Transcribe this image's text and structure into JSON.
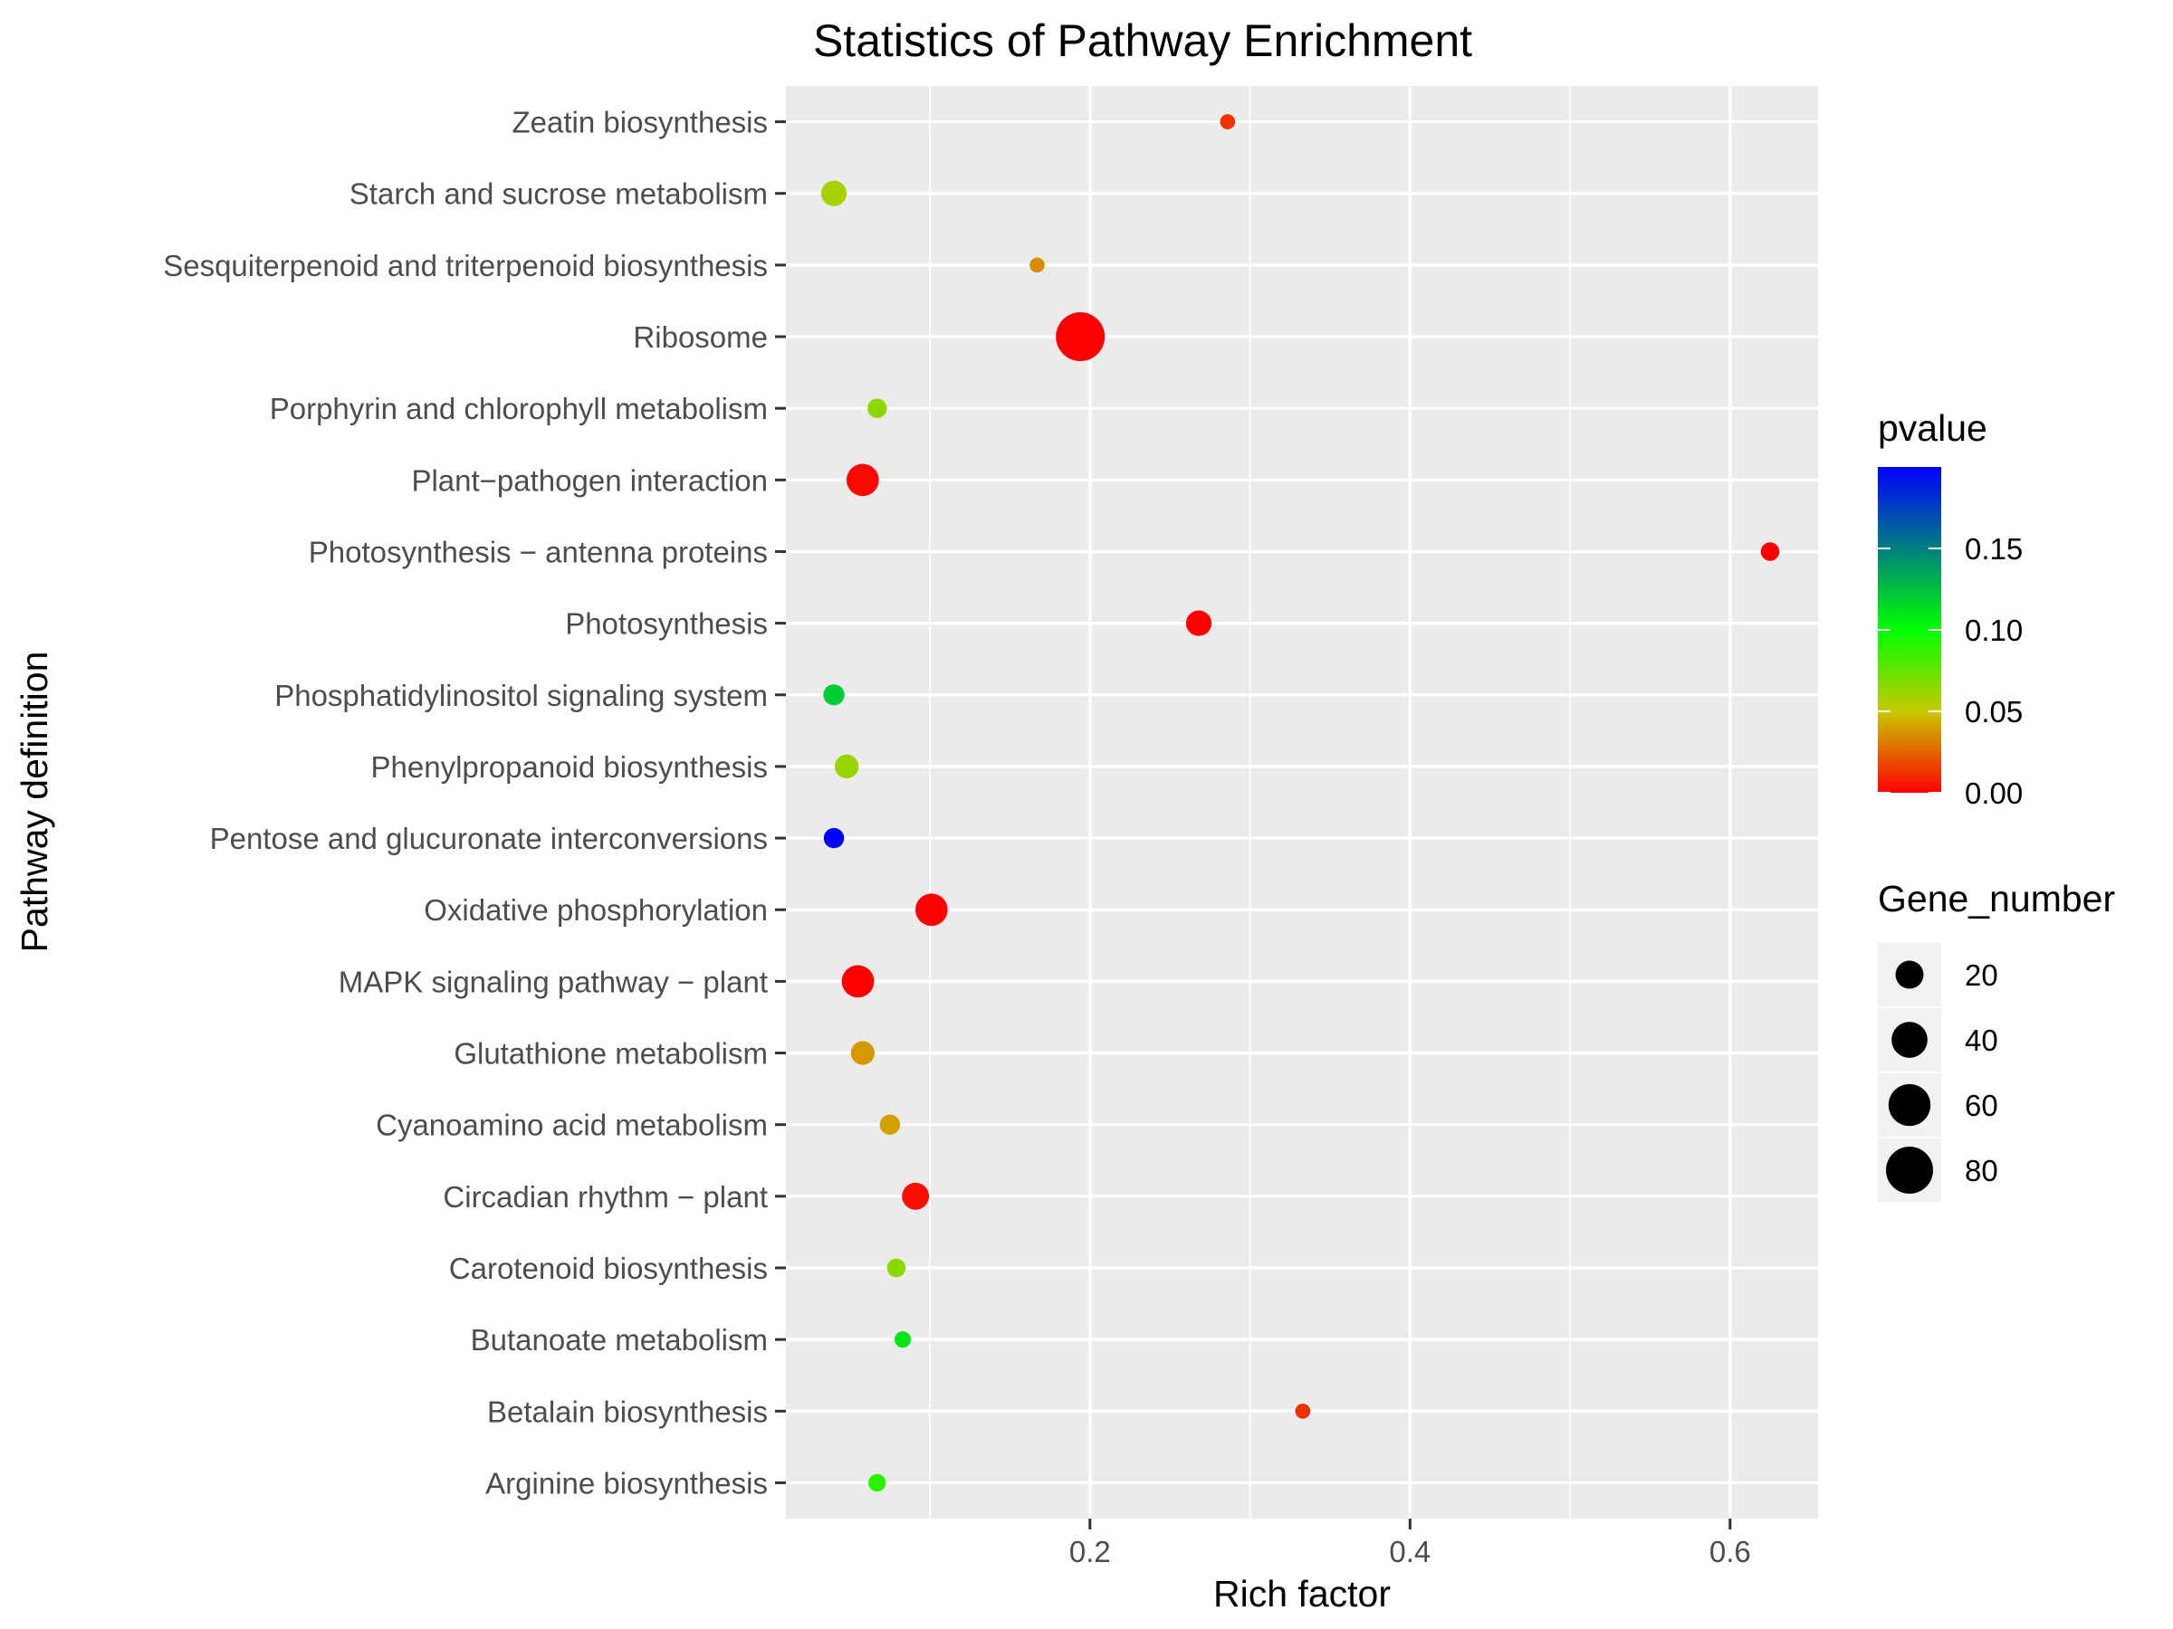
{
  "chart_data": {
    "type": "scatter",
    "title": "Statistics of Pathway Enrichment",
    "xlabel": "Rich factor",
    "ylabel": "Pathway definition",
    "xlim": [
      0.01,
      0.655
    ],
    "xticks": [
      0.2,
      0.4,
      0.6
    ],
    "xtick_labels": [
      "0.2",
      "0.4",
      "0.6"
    ],
    "grid": true,
    "categories": [
      "Zeatin biosynthesis",
      "Starch and sucrose metabolism",
      "Sesquiterpenoid and triterpenoid biosynthesis",
      "Ribosome",
      "Porphyrin and chlorophyll metabolism",
      "Plant−pathogen interaction",
      "Photosynthesis − antenna proteins",
      "Photosynthesis",
      "Phosphatidylinositol signaling system",
      "Phenylpropanoid biosynthesis",
      "Pentose and glucuronate interconversions",
      "Oxidative phosphorylation",
      "MAPK signaling pathway − plant",
      "Glutathione metabolism",
      "Cyanoamino acid metabolism",
      "Circadian rhythm − plant",
      "Carotenoid biosynthesis",
      "Butanoate metabolism",
      "Betalain biosynthesis",
      "Arginine biosynthesis"
    ],
    "points": [
      {
        "pathway": "Zeatin biosynthesis",
        "rich_factor": 0.286,
        "gene_number": 2,
        "pvalue": 0.012
      },
      {
        "pathway": "Starch and sucrose metabolism",
        "rich_factor": 0.04,
        "gene_number": 15,
        "pvalue": 0.058
      },
      {
        "pathway": "Sesquiterpenoid and triterpenoid biosynthesis",
        "rich_factor": 0.167,
        "gene_number": 2,
        "pvalue": 0.035
      },
      {
        "pathway": "Ribosome",
        "rich_factor": 0.194,
        "gene_number": 88,
        "pvalue": 0.0
      },
      {
        "pathway": "Porphyrin and chlorophyll metabolism",
        "rich_factor": 0.067,
        "gene_number": 6,
        "pvalue": 0.065
      },
      {
        "pathway": "Plant−pathogen interaction",
        "rich_factor": 0.058,
        "gene_number": 30,
        "pvalue": 0.002
      },
      {
        "pathway": "Photosynthesis − antenna proteins",
        "rich_factor": 0.625,
        "gene_number": 5,
        "pvalue": 0.0
      },
      {
        "pathway": "Photosynthesis",
        "rich_factor": 0.268,
        "gene_number": 15,
        "pvalue": 0.0
      },
      {
        "pathway": "Phosphatidylinositol signaling system",
        "rich_factor": 0.04,
        "gene_number": 8,
        "pvalue": 0.12
      },
      {
        "pathway": "Phenylpropanoid biosynthesis",
        "rich_factor": 0.048,
        "gene_number": 12,
        "pvalue": 0.062
      },
      {
        "pathway": "Pentose and glucuronate interconversions",
        "rich_factor": 0.04,
        "gene_number": 7,
        "pvalue": 0.2
      },
      {
        "pathway": "Oxidative phosphorylation",
        "rich_factor": 0.101,
        "gene_number": 30,
        "pvalue": 0.0
      },
      {
        "pathway": "MAPK signaling pathway − plant",
        "rich_factor": 0.055,
        "gene_number": 30,
        "pvalue": 0.0
      },
      {
        "pathway": "Glutathione metabolism",
        "rich_factor": 0.058,
        "gene_number": 12,
        "pvalue": 0.038
      },
      {
        "pathway": "Cyanoamino acid metabolism",
        "rich_factor": 0.075,
        "gene_number": 7,
        "pvalue": 0.04
      },
      {
        "pathway": "Circadian rhythm − plant",
        "rich_factor": 0.091,
        "gene_number": 18,
        "pvalue": 0.004
      },
      {
        "pathway": "Carotenoid biosynthesis",
        "rich_factor": 0.079,
        "gene_number": 5,
        "pvalue": 0.065
      },
      {
        "pathway": "Butanoate metabolism",
        "rich_factor": 0.083,
        "gene_number": 3,
        "pvalue": 0.11
      },
      {
        "pathway": "Betalain biosynthesis",
        "rich_factor": 0.333,
        "gene_number": 2,
        "pvalue": 0.012
      },
      {
        "pathway": "Arginine biosynthesis",
        "rich_factor": 0.067,
        "gene_number": 4,
        "pvalue": 0.09
      }
    ],
    "color_legend": {
      "title": "pvalue",
      "min": 0.0,
      "max": 0.2,
      "ticks": [
        0.0,
        0.05,
        0.1,
        0.15
      ],
      "tick_labels": [
        "0.00",
        "0.05",
        "0.10",
        "0.15"
      ],
      "colors": {
        "low": "#ff0000",
        "mid": "#00ff00",
        "high": "#0000ff"
      },
      "placement": "right"
    },
    "size_legend": {
      "title": "Gene_number",
      "values": [
        20,
        40,
        60,
        80
      ],
      "labels": [
        "20",
        "40",
        "60",
        "80"
      ],
      "placement": "right"
    },
    "colors": {
      "panel_bg": "#ebebeb",
      "grid": "#ffffff",
      "text": "#4d4d4d",
      "tick": "#333333",
      "legend_key_bg": "#f2f2f2"
    }
  }
}
